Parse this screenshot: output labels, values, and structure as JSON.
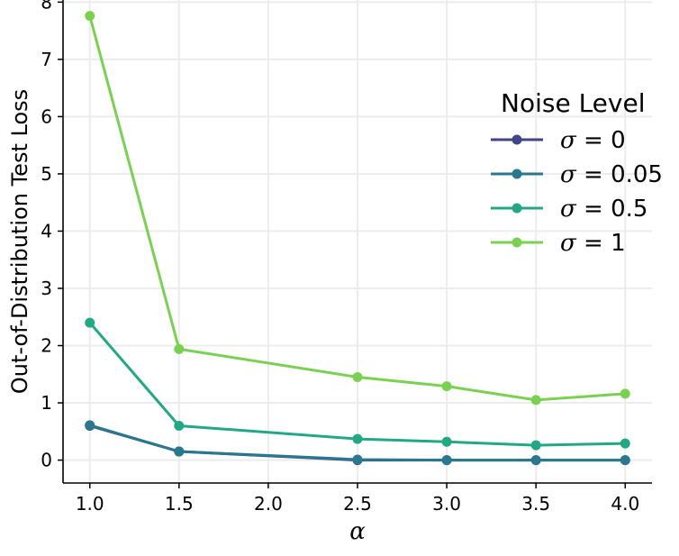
{
  "chart_data": {
    "type": "line",
    "title": "",
    "xlabel": "α",
    "ylabel": "Out-of-Distribution Test Loss",
    "x": [
      1.0,
      1.5,
      2.5,
      3.0,
      3.5,
      4.0
    ],
    "xlim": [
      0.85,
      4.15
    ],
    "ylim": [
      -0.4,
      8.1
    ],
    "xticks": [
      1.0,
      1.5,
      2.0,
      2.5,
      3.0,
      3.5,
      4.0
    ],
    "xtick_labels": [
      "1.0",
      "1.5",
      "2.0",
      "2.5",
      "3.0",
      "3.5",
      "4.0"
    ],
    "yticks": [
      0,
      1,
      2,
      3,
      4,
      5,
      6,
      7,
      8
    ],
    "ytick_labels": [
      "0",
      "1",
      "2",
      "3",
      "4",
      "5",
      "6",
      "7",
      "8"
    ],
    "grid": true,
    "legend": {
      "title": "Noise Level",
      "placement": "right"
    },
    "series": [
      {
        "name": "σ = 0",
        "name_symbol": "σ",
        "name_value": "0",
        "color": "#414487",
        "values": [
          0.6,
          0.15,
          0.0,
          0.0,
          0.0,
          0.0
        ]
      },
      {
        "name": "σ = 0.05",
        "name_symbol": "σ",
        "name_value": "0.05",
        "color": "#2a788e",
        "values": [
          0.61,
          0.15,
          0.01,
          0.0,
          0.0,
          0.0
        ]
      },
      {
        "name": "σ = 0.5",
        "name_symbol": "σ",
        "name_value": "0.5",
        "color": "#22a884",
        "values": [
          2.4,
          0.6,
          0.37,
          0.32,
          0.26,
          0.29
        ]
      },
      {
        "name": "σ = 1",
        "name_symbol": "σ",
        "name_value": "1",
        "color": "#7ad151",
        "values": [
          7.76,
          1.94,
          1.45,
          1.29,
          1.05,
          1.16
        ]
      }
    ]
  }
}
